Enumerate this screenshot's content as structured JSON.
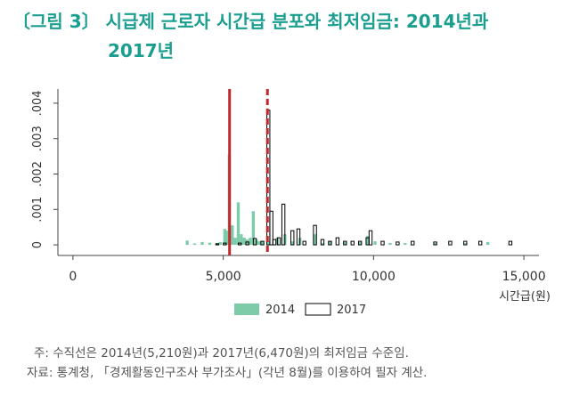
{
  "title": {
    "line1": "〔그림 3〕 시급제 근로자 시간급 분포와 최저임금: 2014년과",
    "line2": "2017년"
  },
  "notes": {
    "note1": "주: 수직선은 2014년(5,210원)과 2017년(6,470원)의 최저임금 수준임.",
    "note2": "자료: 통계청, 「경제활동인구조사 부가조사」(각년 8월)를 이용하여 필자 계산."
  },
  "colors": {
    "series_2014": "#7ecbaa",
    "series_2017_outline": "#000000",
    "minwage_2014": "#c0282d",
    "minwage_2017": "#c0282d",
    "axis": "#444444"
  },
  "chart_data": {
    "type": "bar",
    "xlabel": "시간급(원)",
    "ylabel": "",
    "xlim": [
      -500,
      15500
    ],
    "ylim": [
      -0.0003,
      0.0044
    ],
    "x_ticks": [
      0,
      5000,
      10000,
      15000
    ],
    "x_tick_labels": [
      "0",
      "5,000",
      "10,000",
      "15,000"
    ],
    "y_ticks": [
      0,
      0.001,
      0.002,
      0.003,
      0.004
    ],
    "y_tick_labels": [
      "0",
      ".001",
      ".002",
      ".003",
      ".004"
    ],
    "bin_width": 100,
    "legend": {
      "position": "bottom-center",
      "entries": [
        "2014",
        "2017"
      ]
    },
    "vertical_lines": [
      {
        "x": 5210,
        "style": "solid",
        "series": "2014"
      },
      {
        "x": 6470,
        "style": "dashed",
        "series": "2017"
      }
    ],
    "series": [
      {
        "name": "2014",
        "style": "filled",
        "bins": [
          {
            "x": 3750,
            "y": 0.00012
          },
          {
            "x": 4000,
            "y": 4e-05
          },
          {
            "x": 4250,
            "y": 8e-05
          },
          {
            "x": 4500,
            "y": 6e-05
          },
          {
            "x": 4750,
            "y": 5e-05
          },
          {
            "x": 4850,
            "y": 8e-05
          },
          {
            "x": 5000,
            "y": 0.00045
          },
          {
            "x": 5100,
            "y": 0.0004
          },
          {
            "x": 5150,
            "y": 0.00255
          },
          {
            "x": 5250,
            "y": 0.00055
          },
          {
            "x": 5350,
            "y": 0.0002
          },
          {
            "x": 5450,
            "y": 0.0012
          },
          {
            "x": 5550,
            "y": 0.0003
          },
          {
            "x": 5650,
            "y": 0.0002
          },
          {
            "x": 5750,
            "y": 0.00015
          },
          {
            "x": 5850,
            "y": 0.0002
          },
          {
            "x": 5950,
            "y": 0.00095
          },
          {
            "x": 6050,
            "y": 0.00015
          },
          {
            "x": 6150,
            "y": 0.0001
          },
          {
            "x": 6250,
            "y": 0.0001
          },
          {
            "x": 6450,
            "y": 0.0001
          },
          {
            "x": 6750,
            "y": 0.0002
          },
          {
            "x": 7000,
            "y": 0.0003
          },
          {
            "x": 7250,
            "y": 0.0001
          },
          {
            "x": 7500,
            "y": 0.0002
          },
          {
            "x": 8000,
            "y": 0.0003
          },
          {
            "x": 8250,
            "y": 5e-05
          },
          {
            "x": 8500,
            "y": 0.0001
          },
          {
            "x": 9000,
            "y": 8e-05
          },
          {
            "x": 9500,
            "y": 8e-05
          },
          {
            "x": 9750,
            "y": 0.00025
          },
          {
            "x": 10000,
            "y": 0.0001
          },
          {
            "x": 10500,
            "y": 5e-05
          },
          {
            "x": 11000,
            "y": 5e-05
          },
          {
            "x": 12000,
            "y": 5e-05
          },
          {
            "x": 13000,
            "y": 5e-05
          },
          {
            "x": 13750,
            "y": 8e-05
          }
        ]
      },
      {
        "name": "2017",
        "style": "outline",
        "bins": [
          {
            "x": 4750,
            "y": 3e-05
          },
          {
            "x": 5000,
            "y": 5e-05
          },
          {
            "x": 5500,
            "y": 5e-05
          },
          {
            "x": 5750,
            "y": 8e-05
          },
          {
            "x": 6000,
            "y": 0.00018
          },
          {
            "x": 6250,
            "y": 0.0001
          },
          {
            "x": 6450,
            "y": 0.0038
          },
          {
            "x": 6550,
            "y": 0.00095
          },
          {
            "x": 6650,
            "y": 0.00015
          },
          {
            "x": 6800,
            "y": 0.0002
          },
          {
            "x": 6950,
            "y": 0.00115
          },
          {
            "x": 7250,
            "y": 0.0004
          },
          {
            "x": 7450,
            "y": 0.00045
          },
          {
            "x": 7650,
            "y": 0.0001
          },
          {
            "x": 8000,
            "y": 0.00055
          },
          {
            "x": 8250,
            "y": 0.00015
          },
          {
            "x": 8500,
            "y": 0.0001
          },
          {
            "x": 8750,
            "y": 0.0002
          },
          {
            "x": 9000,
            "y": 0.0001
          },
          {
            "x": 9250,
            "y": 0.0001
          },
          {
            "x": 9500,
            "y": 0.0001
          },
          {
            "x": 9750,
            "y": 0.0002
          },
          {
            "x": 9850,
            "y": 0.0004
          },
          {
            "x": 10250,
            "y": 0.0001
          },
          {
            "x": 10750,
            "y": 8e-05
          },
          {
            "x": 11250,
            "y": 0.0001
          },
          {
            "x": 12000,
            "y": 8e-05
          },
          {
            "x": 12500,
            "y": 0.0001
          },
          {
            "x": 13000,
            "y": 0.0001
          },
          {
            "x": 13500,
            "y": 0.0001
          },
          {
            "x": 14500,
            "y": 0.0001
          }
        ]
      }
    ]
  }
}
